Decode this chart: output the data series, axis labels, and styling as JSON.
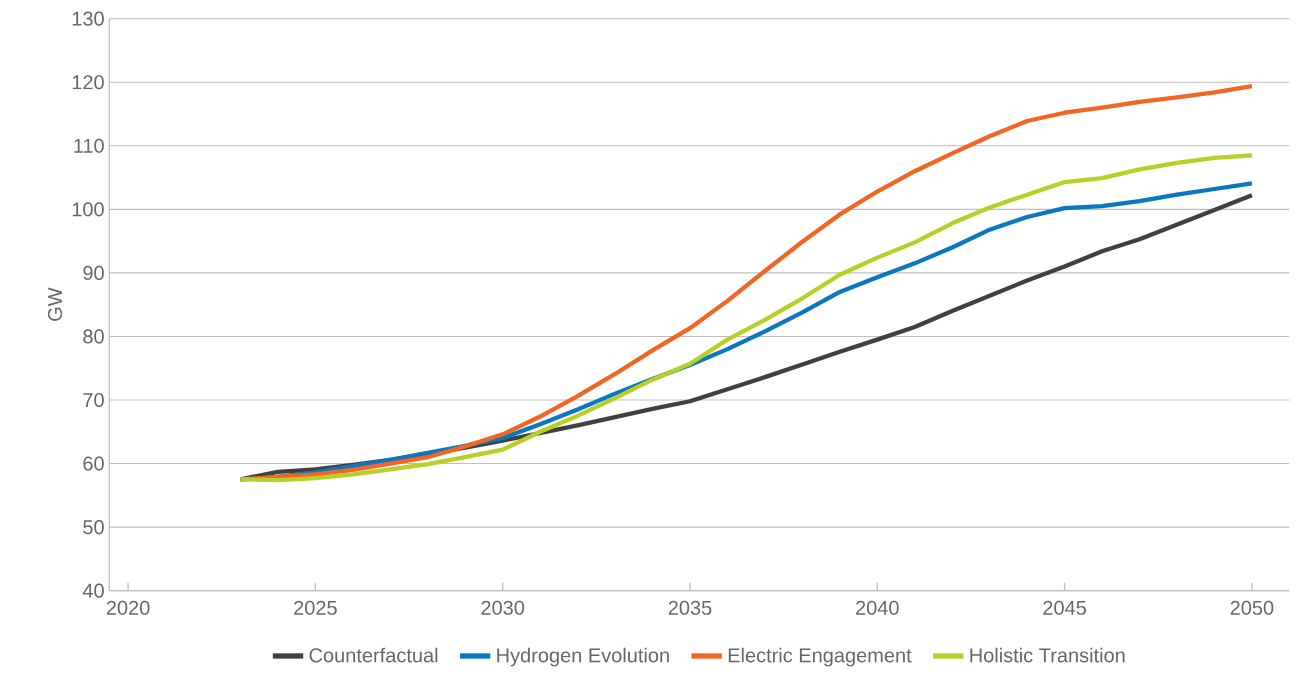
{
  "chart_data": {
    "type": "line",
    "ylabel": "GW",
    "x": [
      2023,
      2024,
      2025,
      2026,
      2027,
      2028,
      2029,
      2030,
      2031,
      2032,
      2033,
      2034,
      2035,
      2036,
      2037,
      2038,
      2039,
      2040,
      2041,
      2042,
      2043,
      2044,
      2045,
      2046,
      2047,
      2048,
      2049,
      2050
    ],
    "series": [
      {
        "name": "Counterfactual",
        "color": "#404040",
        "values": [
          57.5,
          58.7,
          59.1,
          59.8,
          60.6,
          61.5,
          62.5,
          63.6,
          64.8,
          66.0,
          67.3,
          68.6,
          69.8,
          71.7,
          73.6,
          75.6,
          77.6,
          79.5,
          81.5,
          84.0,
          86.4,
          88.8,
          91.0,
          93.4,
          95.3,
          97.6,
          99.9,
          102.2
        ]
      },
      {
        "name": "Hydrogen Evolution",
        "color": "#0a78c0",
        "values": [
          57.5,
          57.9,
          58.6,
          59.6,
          60.6,
          61.7,
          62.8,
          64.0,
          66.2,
          68.5,
          71.0,
          73.3,
          75.5,
          78.0,
          80.8,
          83.8,
          87.0,
          89.3,
          91.5,
          94.0,
          96.8,
          98.8,
          100.2,
          100.5,
          101.3,
          102.3,
          103.2,
          104.1
        ]
      },
      {
        "name": "Electric Engagement",
        "color": "#f26522",
        "values": [
          57.5,
          57.9,
          58.3,
          59.0,
          60.0,
          61.0,
          62.7,
          64.6,
          67.4,
          70.6,
          74.1,
          77.8,
          81.3,
          85.6,
          90.3,
          94.9,
          99.2,
          102.8,
          106.0,
          108.8,
          111.5,
          113.9,
          115.2,
          116.0,
          116.9,
          117.6,
          118.4,
          119.4
        ]
      },
      {
        "name": "Holistic Transition",
        "color": "#b9cf25",
        "values": [
          57.5,
          57.4,
          57.7,
          58.3,
          59.1,
          59.9,
          61.0,
          62.2,
          65.0,
          67.5,
          70.3,
          73.2,
          75.7,
          79.5,
          82.6,
          86.0,
          89.7,
          92.4,
          94.8,
          97.8,
          100.3,
          102.3,
          104.3,
          104.9,
          106.3,
          107.3,
          108.1,
          108.5
        ]
      }
    ],
    "xlim": [
      2019.5,
      2051
    ],
    "xticks": [
      2020,
      2025,
      2030,
      2035,
      2040,
      2045,
      2050
    ],
    "ylim": [
      40,
      130
    ],
    "yticks": [
      40,
      50,
      60,
      70,
      80,
      90,
      100,
      110,
      120,
      130
    ],
    "grid": "y",
    "legend": "bottom",
    "marker": "none",
    "line_style": "solid"
  }
}
